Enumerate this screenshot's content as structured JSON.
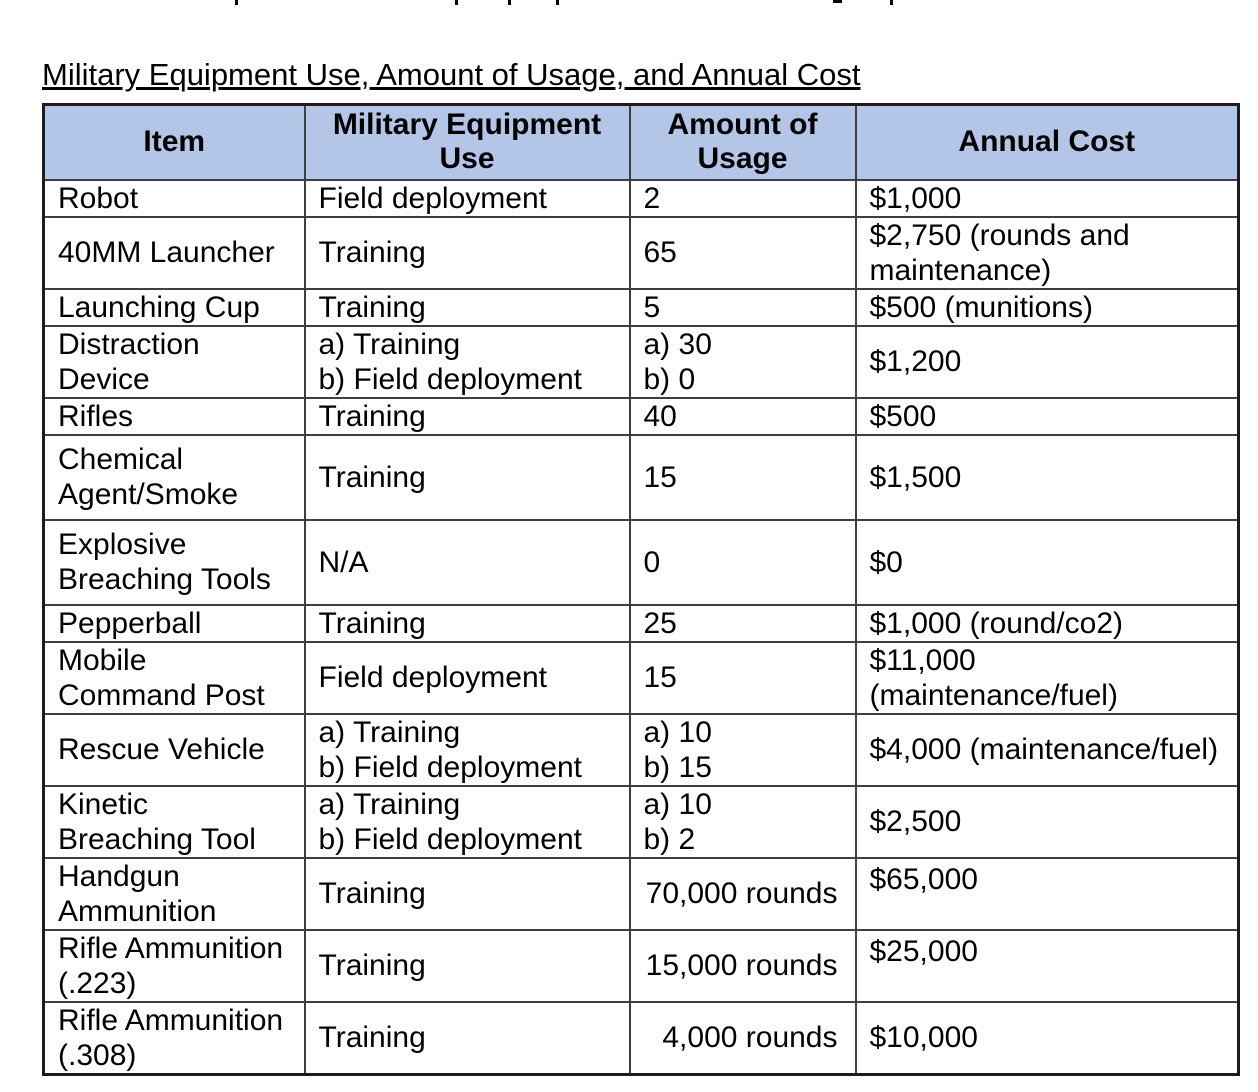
{
  "document": {
    "title": "Military Equipment Use, Amount of Usage, and Annual Cost"
  },
  "table": {
    "colors": {
      "header_bg": "#b4c6e7",
      "border": "#3f3f3f",
      "text": "#000000"
    },
    "columns": [
      {
        "id": "item",
        "label": "Item"
      },
      {
        "id": "use",
        "label": "Military Equipment\nUse"
      },
      {
        "id": "amount",
        "label": "Amount of\nUsage"
      },
      {
        "id": "cost",
        "label": "Annual Cost"
      }
    ],
    "rows": [
      {
        "item": "Robot",
        "use": "Field deployment",
        "amount": "2",
        "cost": "$1,000"
      },
      {
        "item": "40MM Launcher",
        "use": "Training",
        "amount": "65",
        "cost": "$2,750 (rounds and\nmaintenance)"
      },
      {
        "item": "Launching Cup",
        "use": "Training",
        "amount": "5",
        "cost": "$500 (munitions)"
      },
      {
        "item": "Distraction\nDevice",
        "use": "a) Training\nb) Field deployment",
        "amount": "a) 30\nb) 0",
        "cost": "$1,200"
      },
      {
        "item": "Rifles",
        "use": "Training",
        "amount": "40",
        "cost": "$500"
      },
      {
        "item": "Chemical\nAgent/Smoke",
        "use": "Training",
        "amount": "15",
        "cost": "$1,500"
      },
      {
        "item": "Explosive\nBreaching Tools",
        "use": "N/A",
        "amount": "0",
        "cost": "$0"
      },
      {
        "item": "Pepperball",
        "use": "Training",
        "amount": "25",
        "cost": "$1,000 (round/co2)"
      },
      {
        "item": "Mobile\nCommand Post",
        "use": "Field deployment",
        "amount": "15",
        "cost": "$11,000\n(maintenance/fuel)"
      },
      {
        "item": "Rescue Vehicle",
        "use": "a) Training\nb) Field deployment",
        "amount": "a) 10\nb) 15",
        "cost": "$4,000 (maintenance/fuel)"
      },
      {
        "item": "Kinetic\nBreaching Tool",
        "use": "a) Training\nb) Field deployment",
        "amount": "a) 10\nb) 2",
        "cost": "$2,500"
      },
      {
        "item": "Handgun\nAmmunition",
        "use": "Training",
        "amount": "70,000 rounds",
        "cost": "$65,000"
      },
      {
        "item": "Rifle Ammunition\n(.223)",
        "use": "Training",
        "amount": "15,000 rounds",
        "cost": "$25,000"
      },
      {
        "item": "Rifle Ammunition\n(.308)",
        "use": "Training",
        "amount": "4,000 rounds",
        "cost": "$10,000"
      }
    ]
  }
}
